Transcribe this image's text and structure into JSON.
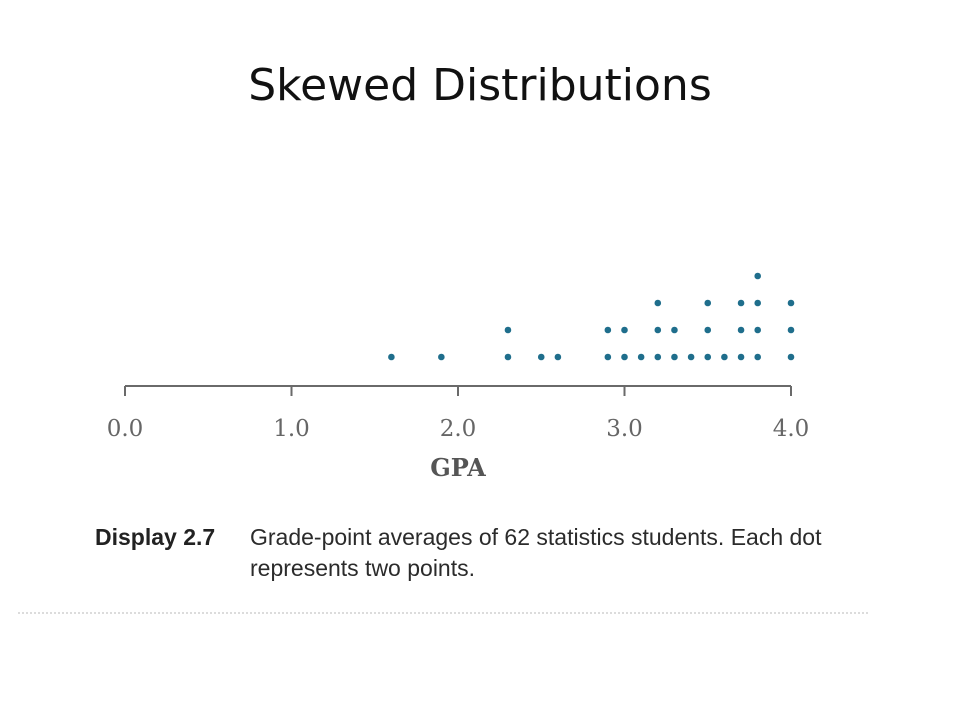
{
  "slide": {
    "title": "Skewed Distributions"
  },
  "chart_data": {
    "type": "dot plot",
    "xlabel": "GPA",
    "xlim": [
      0.0,
      4.0
    ],
    "ticks": [
      {
        "value": 0.0,
        "label": "0.0"
      },
      {
        "value": 1.0,
        "label": "1.0"
      },
      {
        "value": 2.0,
        "label": "2.0"
      },
      {
        "value": 3.0,
        "label": "3.0"
      },
      {
        "value": 4.0,
        "label": "4.0"
      }
    ],
    "dots_per_value": [
      {
        "x": 1.6,
        "count": 1
      },
      {
        "x": 1.9,
        "count": 1
      },
      {
        "x": 2.3,
        "count": 2
      },
      {
        "x": 2.5,
        "count": 1
      },
      {
        "x": 2.6,
        "count": 1
      },
      {
        "x": 2.9,
        "count": 2
      },
      {
        "x": 3.0,
        "count": 2
      },
      {
        "x": 3.1,
        "count": 1
      },
      {
        "x": 3.2,
        "count": 3
      },
      {
        "x": 3.3,
        "count": 2
      },
      {
        "x": 3.4,
        "count": 1
      },
      {
        "x": 3.5,
        "count": 3
      },
      {
        "x": 3.6,
        "count": 1
      },
      {
        "x": 3.7,
        "count": 3
      },
      {
        "x": 3.8,
        "count": 4
      },
      {
        "x": 4.0,
        "count": 3
      }
    ],
    "dot_color": "#1f6e8c",
    "axis_color": "#6a6a6a"
  },
  "caption": {
    "label": "Display 2.7",
    "text": "Grade-point averages of 62 statistics students. Each dot represents two points."
  }
}
